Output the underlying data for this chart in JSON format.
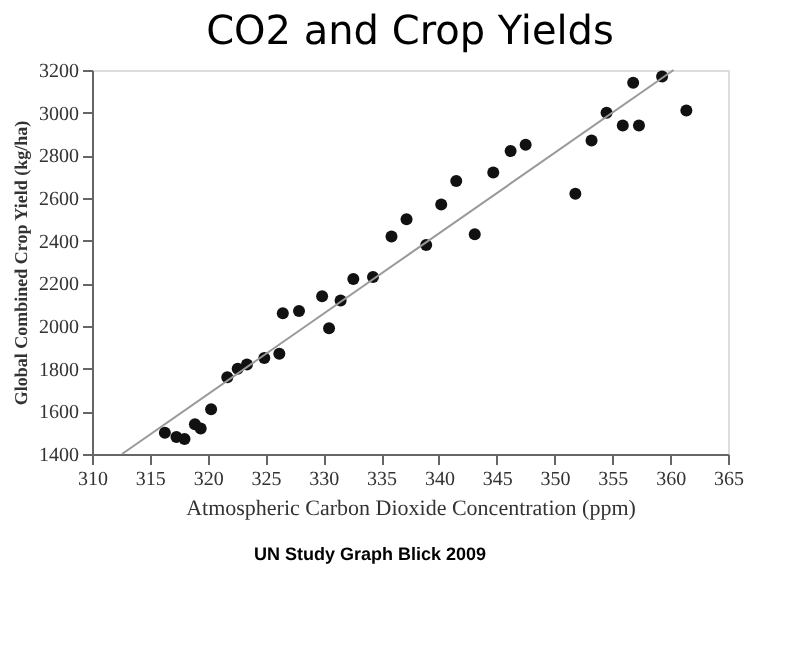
{
  "chart_data": {
    "type": "scatter",
    "title": "CO2 and Crop Yields",
    "xlabel": "Atmospheric Carbon Dioxide Concentration (ppm)",
    "ylabel": "Global Combined Crop Yield (kg/ha)",
    "annotations": [
      "UN Study Graph Blick 2009"
    ],
    "xlim": [
      310,
      365
    ],
    "xticks": [
      310,
      315,
      320,
      325,
      330,
      335,
      340,
      345,
      350,
      355,
      360,
      365
    ],
    "ylim": [
      1400,
      3200
    ],
    "yticks": [
      1400,
      1600,
      1800,
      2000,
      2200,
      2400,
      2600,
      2800,
      3000,
      3200
    ],
    "grid": false,
    "marker": "circle",
    "series": [
      {
        "color": "#111111",
        "x": [
          316.3,
          317.3,
          318.0,
          318.9,
          319.4,
          320.3,
          321.7,
          322.6,
          323.4,
          324.9,
          326.2,
          326.5,
          327.9,
          329.9,
          330.5,
          331.5,
          332.6,
          334.3,
          335.9,
          337.2,
          338.9,
          340.2,
          341.5,
          343.1,
          344.7,
          346.2,
          347.5,
          351.8,
          353.2,
          354.5,
          355.9,
          356.8,
          357.3,
          359.3,
          361.4
        ],
        "values": [
          1500,
          1480,
          1470,
          1540,
          1520,
          1610,
          1760,
          1800,
          1820,
          1850,
          1870,
          2060,
          2070,
          2140,
          1990,
          2120,
          2220,
          2230,
          2420,
          2500,
          2380,
          2570,
          2680,
          2430,
          2720,
          2820,
          2850,
          2620,
          2870,
          3000,
          2940,
          3140,
          2940,
          3170,
          3010
        ]
      },
      {
        "type": "line",
        "color": "#999999",
        "marker": "none",
        "x": [
          312.6,
          360.3
        ],
        "values": [
          1400,
          3200
        ]
      }
    ]
  }
}
